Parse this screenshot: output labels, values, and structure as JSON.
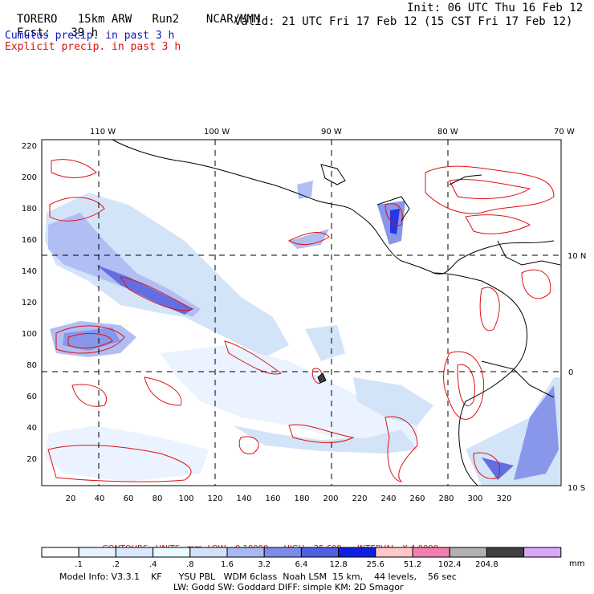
{
  "header": {
    "model": "TORERO",
    "resolution": "15km ARW",
    "run": "Run2",
    "org": "NCAR/MMM",
    "init": "Init: 06 UTC Thu 16 Feb 12",
    "fcst_label": "Fcst:",
    "fcst_value": "39 h",
    "valid": "Valid: 21 UTC Fri 17 Feb 12 (15 CST Fri 17 Feb 12)",
    "field1": "Cumulus precip. in past 3 h",
    "field2": "Explicit precip. in past 3 h"
  },
  "map": {
    "lon_labels": [
      "110 W",
      "100 W",
      "90 W",
      "80 W",
      "70 W"
    ],
    "lat_labels": [
      "10 N",
      "0",
      "10 S"
    ],
    "y_ticks": [
      "220",
      "200",
      "180",
      "160",
      "140",
      "120",
      "100",
      "80",
      "60",
      "40",
      "20"
    ],
    "x_ticks": [
      "20",
      "40",
      "60",
      "80",
      "100",
      "120",
      "140",
      "160",
      "180",
      "200",
      "220",
      "240",
      "260",
      "280",
      "300",
      "320"
    ]
  },
  "contours": {
    "label": "CONTOURS:",
    "units": "UNITS=mm",
    "low": "LOW= 0.10000",
    "high": "HIGH= 25.600",
    "interval": "INTERVAL=X 4.0000"
  },
  "colorbar": {
    "labels": [
      ".1",
      ".2",
      ".4",
      ".8",
      "1.6",
      "3.2",
      "6.4",
      "12.8",
      "25.6",
      "51.2",
      "102.4",
      "204.8"
    ],
    "unit": "mm",
    "colors": [
      "#ffffff",
      "#e8f2ff",
      "#d8e8ff",
      "#e9fbff",
      "#cfe2f8",
      "#a9b8f2",
      "#7c8ce8",
      "#5060e0",
      "#1020e0",
      "#ffc8c8",
      "#f080b0",
      "#b0b0b0",
      "#404040",
      "#d8a8f8"
    ]
  },
  "model_info": {
    "line1": "Model Info: V3.3.1    KF      YSU PBL   WDM 6class  Noah LSM  15 km,    44 levels,    56 sec",
    "line2": "LW: Godd SW: Goddard DIFF: simple KM: 2D Smagor"
  }
}
